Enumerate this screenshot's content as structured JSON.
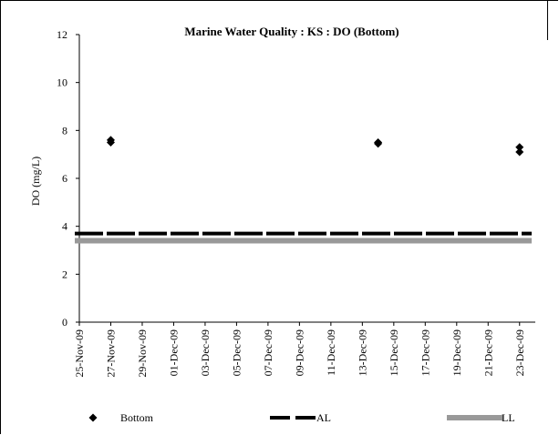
{
  "chart_data": {
    "type": "scatter",
    "title": "Marine Water Quality : KS  : DO (Bottom)",
    "ylabel": "DO (mg/L)",
    "xlabel": "",
    "ylim": [
      0,
      12
    ],
    "yticks": [
      0,
      2,
      4,
      6,
      8,
      10,
      12
    ],
    "xlim": [
      "2009-11-25",
      "2009-12-24"
    ],
    "xticks": [
      "25-Nov-09",
      "27-Nov-09",
      "29-Nov-09",
      "01-Dec-09",
      "03-Dec-09",
      "05-Dec-09",
      "07-Dec-09",
      "09-Dec-09",
      "11-Dec-09",
      "13-Dec-09",
      "15-Dec-09",
      "17-Dec-09",
      "19-Dec-09",
      "21-Dec-09",
      "23-Dec-09"
    ],
    "grid": false,
    "legend_position": "bottom",
    "series": [
      {
        "name": "Bottom",
        "kind": "points",
        "marker": "diamond",
        "color": "#000000",
        "points": [
          {
            "x": "2009-11-27",
            "y": 7.6
          },
          {
            "x": "2009-11-27",
            "y": 7.5
          },
          {
            "x": "2009-12-14",
            "y": 7.5
          },
          {
            "x": "2009-12-14",
            "y": 7.45
          },
          {
            "x": "2009-12-23",
            "y": 7.3
          },
          {
            "x": "2009-12-23",
            "y": 7.1
          }
        ]
      },
      {
        "name": "AL",
        "kind": "hline",
        "style": "dashed",
        "color": "#000000",
        "y": 3.7
      },
      {
        "name": "LL",
        "kind": "hline",
        "style": "solid",
        "color": "#999999",
        "y": 3.4
      }
    ]
  }
}
